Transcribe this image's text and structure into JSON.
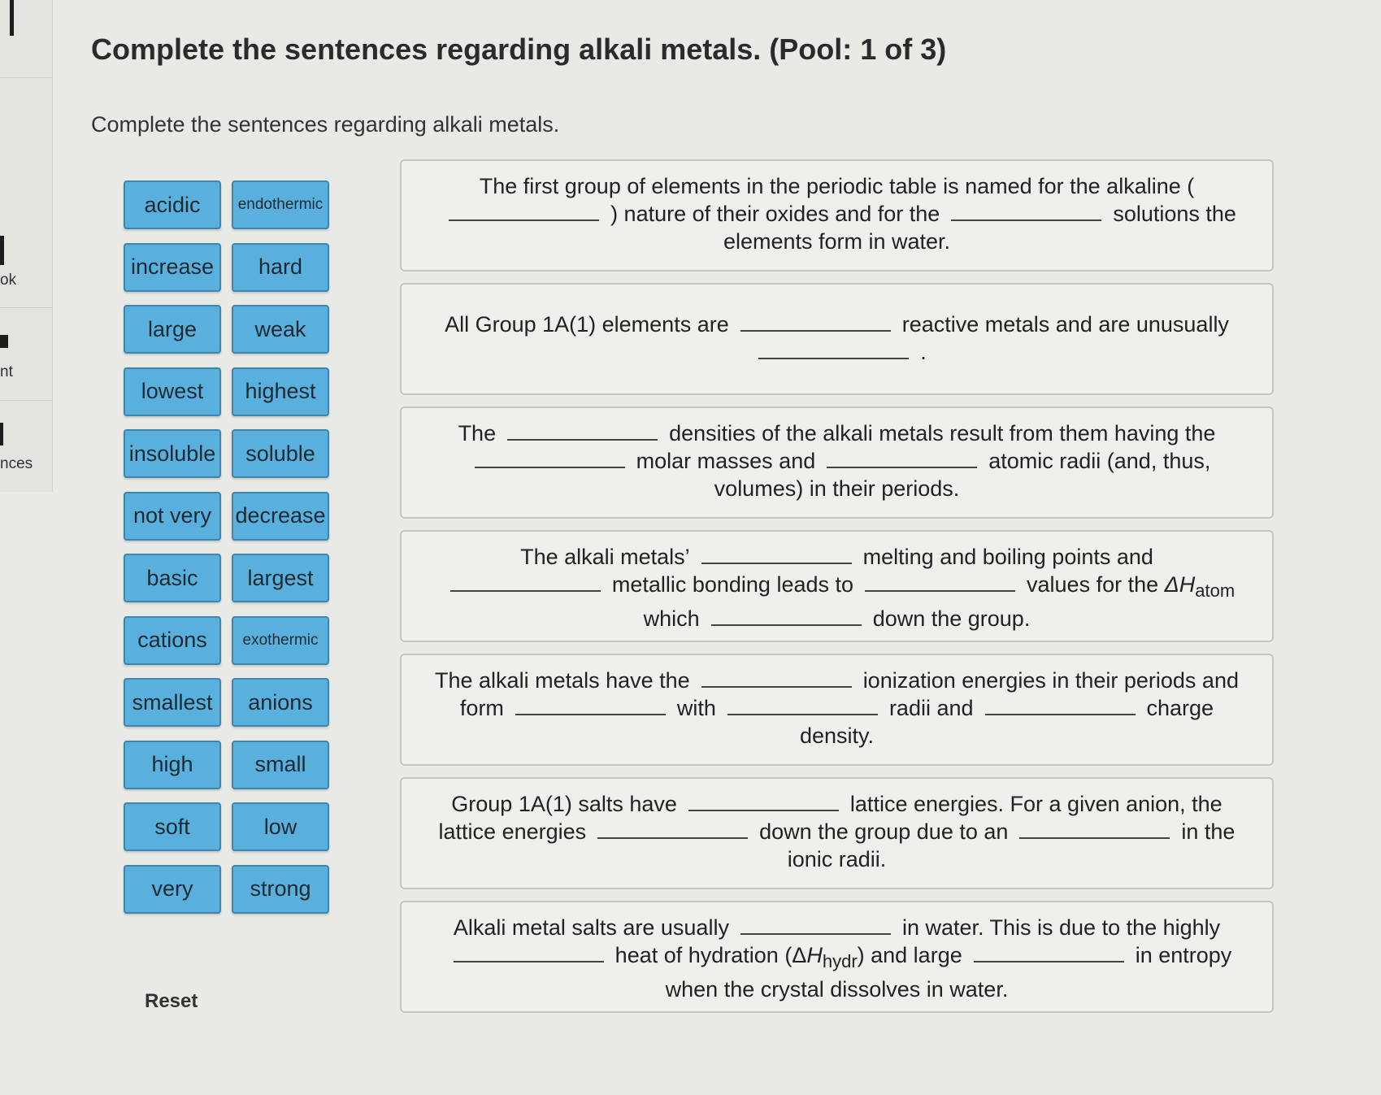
{
  "header": {
    "title": "Complete the sentences regarding alkali metals. (Pool: 1 of 3)",
    "instructions": "Complete the sentences regarding alkali metals."
  },
  "rail": {
    "items": [
      "ok",
      "nt",
      "nces"
    ]
  },
  "word_bank": [
    "acidic",
    "endothermic",
    "increase",
    "hard",
    "large",
    "weak",
    "lowest",
    "highest",
    "insoluble",
    "soluble",
    "not very",
    "decrease",
    "basic",
    "largest",
    "cations",
    "exothermic",
    "smallest",
    "anions",
    "high",
    "small",
    "soft",
    "low",
    "very",
    "strong"
  ],
  "reset_label": "Reset",
  "sentences": {
    "s1": {
      "p1": "The first group of elements in the periodic table is named for the alkaline (",
      "p2": ") nature of their oxides and for the",
      "p3": "solutions the elements form in water."
    },
    "s2": {
      "p1": "All Group 1A(1) elements are",
      "p2": "reactive metals and are unusually",
      "p3": "."
    },
    "s3": {
      "p1": "The",
      "p2": "densities of the alkali metals result from them having the",
      "p3": "molar masses and",
      "p4": "atomic radii (and, thus, volumes) in their periods."
    },
    "s4": {
      "p1": "The alkali metals’",
      "p2": "melting and boiling points and",
      "p3": "metallic bonding leads to",
      "p4": "values for the",
      "delta_h": "ΔH",
      "atom": "atom",
      "p5": "which",
      "p6": "down the group."
    },
    "s5": {
      "p1": "The alkali metals have the",
      "p2": "ionization energies in their periods and form",
      "p3": "with",
      "p4": "radii and",
      "p5": "charge density."
    },
    "s6": {
      "p1": "Group 1A(1) salts have",
      "p2": "lattice energies. For a given anion, the lattice energies",
      "p3": "down the group due to an",
      "p4": "in the ionic radii."
    },
    "s7": {
      "p1": "Alkali metal salts are usually",
      "p2": "in water. This is due to the highly",
      "p3": "heat of hydration (Δ",
      "h": "H",
      "hydr": "hydr",
      "p4": ") and large",
      "p5": "in entropy when the crystal dissolves in water."
    }
  }
}
